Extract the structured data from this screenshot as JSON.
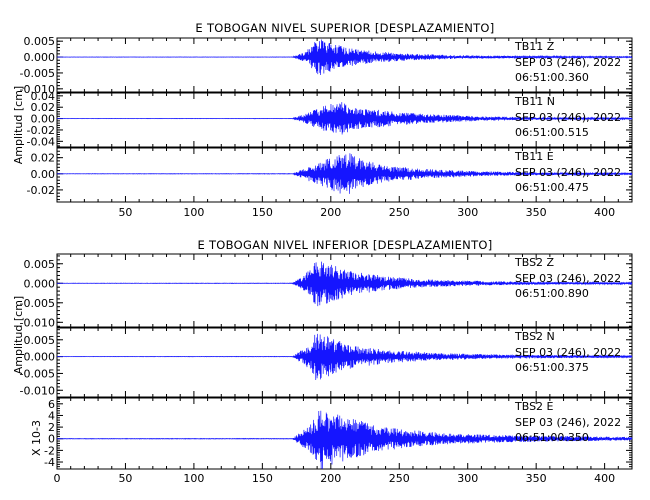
{
  "chart_data": [
    {
      "type": "line",
      "title": "E TOBOGAN NIVEL SUPERIOR [DESPLAZAMIENTO]",
      "ylabel": "Amplitud [cm]",
      "xlim": [
        0,
        420
      ],
      "x_ticks": [
        "50",
        "100",
        "150",
        "200",
        "250",
        "300",
        "350",
        "400"
      ],
      "grid": false,
      "color": "#1515ff",
      "series": [
        {
          "name": "TB11 Z",
          "station": "TB11",
          "channel": "Z",
          "date": "SEP 03 (246), 2022",
          "time": "06:51:00.360",
          "ylim": [
            -0.011,
            0.006
          ],
          "y_ticks": [
            "0.005",
            "0.000",
            "-0.005",
            "-0.010"
          ],
          "onset": 172,
          "peak_time": 192,
          "peak_amp": 0.0062,
          "decay": 18,
          "envelope": [
            [
              0,
              4e-05
            ],
            [
              172,
              6e-05
            ],
            [
              182,
              0.0018
            ],
            [
              188,
              0.0048
            ],
            [
              192,
              0.0062
            ],
            [
              200,
              0.0045
            ],
            [
              210,
              0.0032
            ],
            [
              225,
              0.0022
            ],
            [
              250,
              0.0012
            ],
            [
              290,
              0.0006
            ],
            [
              340,
              0.0003
            ],
            [
              420,
              0.00015
            ]
          ]
        },
        {
          "name": "TB11 N",
          "station": "TB11",
          "channel": "N",
          "date": "SEP 03 (246), 2022",
          "time": "06:51:00.515",
          "ylim": [
            -0.05,
            0.045
          ],
          "y_ticks": [
            "0.04",
            "0.02",
            "0.00",
            "-0.02",
            "-0.04"
          ],
          "onset": 172,
          "envelope": [
            [
              0,
              0.0002
            ],
            [
              172,
              0.0003
            ],
            [
              185,
              0.012
            ],
            [
              195,
              0.022
            ],
            [
              208,
              0.032
            ],
            [
              215,
              0.02
            ],
            [
              240,
              0.014
            ],
            [
              270,
              0.008
            ],
            [
              310,
              0.004
            ],
            [
              360,
              0.002
            ],
            [
              420,
              0.001
            ]
          ]
        },
        {
          "name": "TB11 E",
          "station": "TB11",
          "channel": "E",
          "date": "SEP 03 (246), 2022",
          "time": "06:51:00.475",
          "ylim": [
            -0.035,
            0.032
          ],
          "y_ticks": [
            "0.02",
            "0.00",
            "-0.02"
          ],
          "onset": 172,
          "envelope": [
            [
              0,
              0.0002
            ],
            [
              172,
              0.0003
            ],
            [
              185,
              0.01
            ],
            [
              200,
              0.02
            ],
            [
              212,
              0.028
            ],
            [
              222,
              0.018
            ],
            [
              240,
              0.01
            ],
            [
              270,
              0.006
            ],
            [
              310,
              0.003
            ],
            [
              360,
              0.0015
            ],
            [
              420,
              0.0008
            ]
          ]
        }
      ]
    },
    {
      "type": "line",
      "title": "E TOBOGAN NIVEL INFERIOR [DESPLAZAMIENTO]",
      "ylabel": "Amplitud [cm]",
      "ylabel_multiplier": "X 10-3",
      "xlim": [
        0,
        420
      ],
      "x_ticks": [
        "0",
        "50",
        "100",
        "150",
        "200",
        "250",
        "300",
        "350",
        "400"
      ],
      "grid": false,
      "color": "#1515ff",
      "series": [
        {
          "name": "TBS2 Z",
          "station": "TBS2",
          "channel": "Z",
          "date": "SEP 03 (246), 2022",
          "time": "06:51:00.890",
          "ylim": [
            -0.0112,
            0.0075
          ],
          "y_ticks": [
            "0.005",
            "0.000",
            "-0.005",
            "-0.010"
          ],
          "onset": 172,
          "envelope": [
            [
              0,
              4e-05
            ],
            [
              172,
              6e-05
            ],
            [
              185,
              0.0035
            ],
            [
              190,
              0.0065
            ],
            [
              198,
              0.005
            ],
            [
              215,
              0.0032
            ],
            [
              240,
              0.0018
            ],
            [
              270,
              0.001
            ],
            [
              320,
              0.0005
            ],
            [
              370,
              0.0003
            ],
            [
              420,
              0.0002
            ]
          ]
        },
        {
          "name": "TBS2 N",
          "station": "TBS2",
          "channel": "N",
          "date": "SEP 03 (246), 2022",
          "time": "06:51:00.375",
          "ylim": [
            -0.012,
            0.0085
          ],
          "y_ticks": [
            "0.005",
            "0.000",
            "-0.005",
            "-0.010"
          ],
          "onset": 172,
          "envelope": [
            [
              0,
              4e-05
            ],
            [
              172,
              6e-05
            ],
            [
              185,
              0.004
            ],
            [
              190,
              0.008
            ],
            [
              200,
              0.0055
            ],
            [
              215,
              0.0035
            ],
            [
              240,
              0.002
            ],
            [
              280,
              0.001
            ],
            [
              330,
              0.0006
            ],
            [
              420,
              0.0003
            ]
          ]
        },
        {
          "name": "TBS2 E",
          "station": "TBS2",
          "channel": "E",
          "date": "SEP 03 (246), 2022",
          "time": "06:51:00.350",
          "ylim": [
            -5.2,
            7
          ],
          "y_ticks": [
            "6",
            "4",
            "2",
            "0",
            "-2",
            "-4"
          ],
          "onset": 172,
          "envelope": [
            [
              0,
              0.04
            ],
            [
              172,
              0.05
            ],
            [
              185,
              2.5
            ],
            [
              192,
              5.5
            ],
            [
              200,
              4.5
            ],
            [
              215,
              3.5
            ],
            [
              240,
              2
            ],
            [
              280,
              1
            ],
            [
              330,
              0.6
            ],
            [
              420,
              0.3
            ]
          ]
        }
      ]
    }
  ]
}
